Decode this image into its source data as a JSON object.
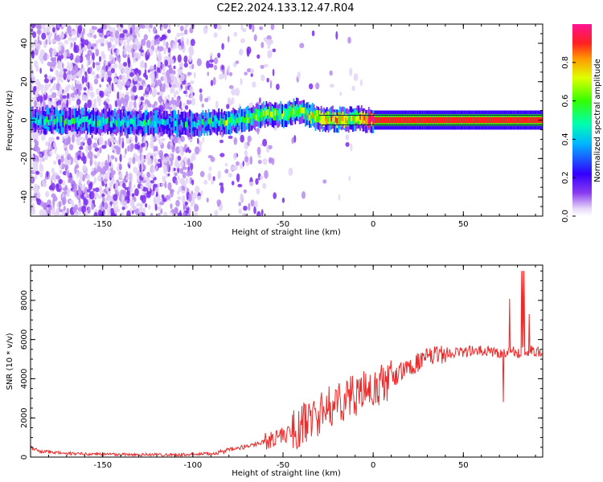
{
  "title": "C2E2.2024.133.12.47.R04",
  "colors": {
    "snr_line": "#ee2a2a",
    "background": "#ffffff",
    "colormap": [
      "#e6d6f8",
      "#8a3cf0",
      "#3300ff",
      "#00b8ff",
      "#00ffb0",
      "#33ff00",
      "#dfff00",
      "#ff9900",
      "#ff2020",
      "#ff1493"
    ]
  },
  "chart_data": [
    {
      "type": "heatmap",
      "xlabel": "Height of straight line (km)",
      "ylabel": "Frequency (Hz)",
      "xlim": [
        -190,
        94
      ],
      "ylim": [
        -50,
        50
      ],
      "x_ticks": [
        -150,
        -100,
        -50,
        0,
        50
      ],
      "y_ticks": [
        -40,
        -20,
        0,
        20,
        40
      ],
      "colorbar": {
        "label": "Normalized spectral amplitude",
        "range": [
          0,
          1
        ],
        "ticks": [
          0.0,
          0.2,
          0.4,
          0.6,
          0.8
        ]
      },
      "ridge": [
        {
          "x": -190,
          "f": 0,
          "amp": 0.25
        },
        {
          "x": -100,
          "f": -2,
          "amp": 0.22
        },
        {
          "x": -90,
          "f": -1,
          "amp": 0.3
        },
        {
          "x": -80,
          "f": -1,
          "amp": 0.35
        },
        {
          "x": -70,
          "f": 1,
          "amp": 0.4
        },
        {
          "x": -60,
          "f": 3,
          "amp": 0.45
        },
        {
          "x": -50,
          "f": 3,
          "amp": 0.4
        },
        {
          "x": -40,
          "f": 5,
          "amp": 0.38
        },
        {
          "x": -35,
          "f": 2,
          "amp": 0.5
        },
        {
          "x": -30,
          "f": 1,
          "amp": 0.55
        },
        {
          "x": -20,
          "f": 0,
          "amp": 0.6
        },
        {
          "x": -10,
          "f": 1,
          "amp": 0.5
        },
        {
          "x": 0,
          "f": 0,
          "amp": 0.8
        },
        {
          "x": 94,
          "f": 0,
          "amp": 0.85
        }
      ]
    },
    {
      "type": "line",
      "xlabel": "Height of straight line (km)",
      "ylabel": "SNR (10 * v/v)",
      "xlim": [
        -190,
        94
      ],
      "ylim": [
        0,
        9800
      ],
      "x_ticks": [
        -150,
        -100,
        -50,
        0,
        50
      ],
      "y_ticks": [
        0,
        2000,
        4000,
        6000,
        8000
      ],
      "series": [
        {
          "x": [
            -190,
            -185,
            -170,
            -150,
            -130,
            -110,
            -100,
            -90,
            -80,
            -70,
            -60,
            -55,
            -50,
            -45,
            -40,
            -35,
            -30,
            -25,
            -20,
            -15,
            -10,
            -5,
            0,
            5,
            10,
            15,
            20,
            25,
            30,
            35,
            40,
            45,
            50,
            55,
            60,
            65,
            70,
            75,
            80,
            85,
            90,
            94
          ],
          "y": [
            500,
            300,
            180,
            150,
            130,
            120,
            130,
            180,
            350,
            550,
            800,
            950,
            1100,
            1300,
            1600,
            1900,
            2200,
            2500,
            2800,
            3000,
            3200,
            3300,
            3400,
            3700,
            4000,
            4300,
            4600,
            4850,
            5050,
            5200,
            5300,
            5350,
            5380,
            5400,
            5400,
            5380,
            5350,
            5400,
            5300,
            5400,
            5450,
            5400
          ]
        }
      ]
    }
  ]
}
